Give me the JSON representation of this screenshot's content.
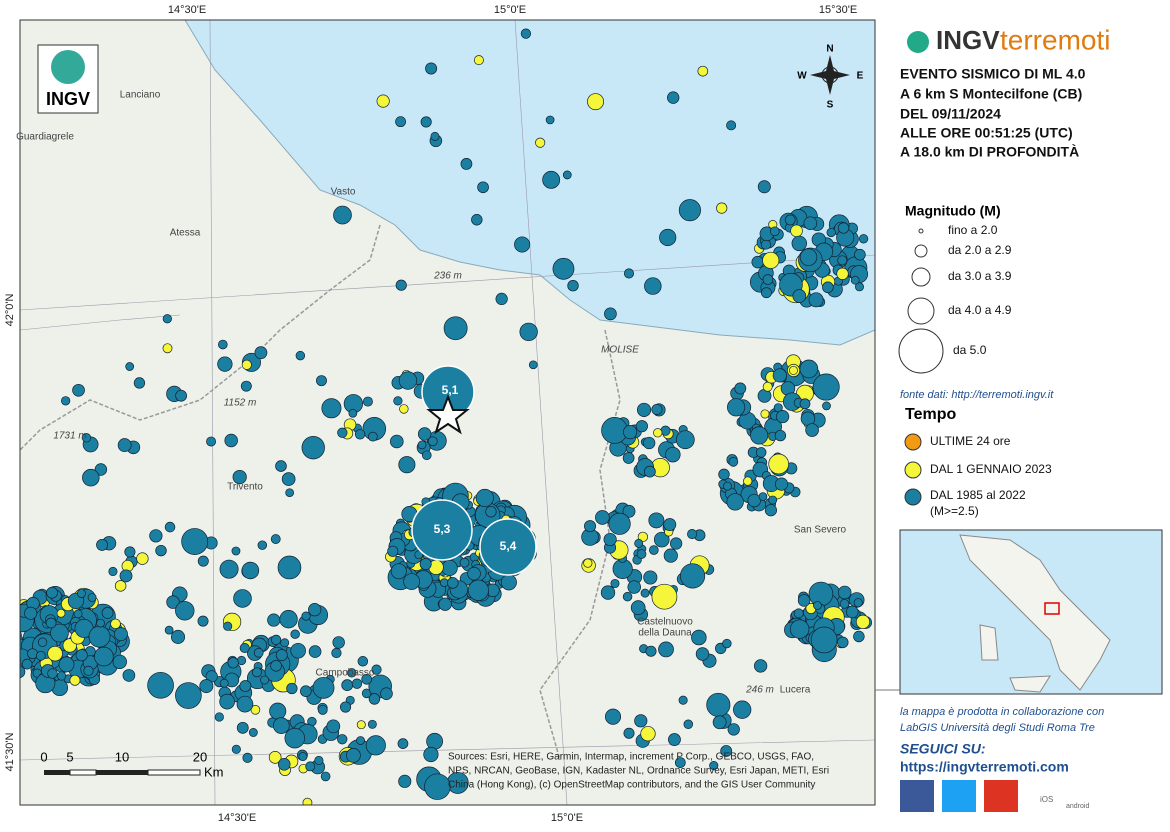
{
  "map": {
    "top_coords": [
      "14°30'E",
      "15°0'E",
      "15°30'E"
    ],
    "bottom_coords": [
      "14°30'E",
      "15°0'E"
    ],
    "left_coords": [
      "42°0'N",
      "41°30'N"
    ],
    "places": [
      "Lanciano",
      "Guardiagrele",
      "Vasto",
      "Atessa",
      "Trivento",
      "Campobasso",
      "San Severo",
      "Castelnuovo",
      "della Dauna",
      "Lucera",
      "1152 m",
      "1731 m",
      "236 m",
      "246 m",
      "MOLISE"
    ],
    "compass": [
      "N",
      "E",
      "S",
      "W"
    ],
    "magnitudes": [
      "5,1",
      "5,3",
      "5,4"
    ],
    "scale": [
      "0",
      "5",
      "10",
      "20",
      "Km"
    ],
    "attribution": [
      "Sources: Esri, HERE, Garmin, Intermap, increment P Corp., GEBCO, USGS, FAO,",
      "NPS, NRCAN, GeoBase, IGN, Kadaster NL, Ordnance Survey, Esri Japan, METI, Esri",
      "China (Hong Kong), (c) OpenStreetMap contributors, and the GIS User Community"
    ]
  },
  "header": {
    "logo": "INGV",
    "brand_a": "INGV",
    "brand_b": "terremoti"
  },
  "event": [
    "EVENTO SISMICO DI ML 4.0",
    "A 6 km S Montecilfone (CB)",
    "DEL 09/11/2024",
    "ALLE ORE 00:51:25 (UTC)",
    "A 18.0 km DI PROFONDITÀ"
  ],
  "legend_magnitude": {
    "title": "Magnitudo (M)",
    "items": [
      "fino a 2.0",
      "da 2.0 a 2.9",
      "da 3.0 a 3.9",
      "da 4.0 a 4.9",
      "da 5.0"
    ]
  },
  "source": "fonte dati: http://terremoti.ingv.it",
  "legend_time": {
    "title": "Tempo",
    "items": [
      "ULTIME 24 ore",
      "DAL 1 GENNAIO 2023",
      "DAL 1985 al 2022",
      "(M>=2.5)"
    ]
  },
  "footer": {
    "collab": [
      "la mappa è prodotta in collaborazione con",
      "LabGIS Università degli Studi Roma Tre"
    ],
    "follow": "SEGUICI SU:",
    "url": "https://ingvterremoti.com",
    "ios": "iOS",
    "android": "android"
  }
}
